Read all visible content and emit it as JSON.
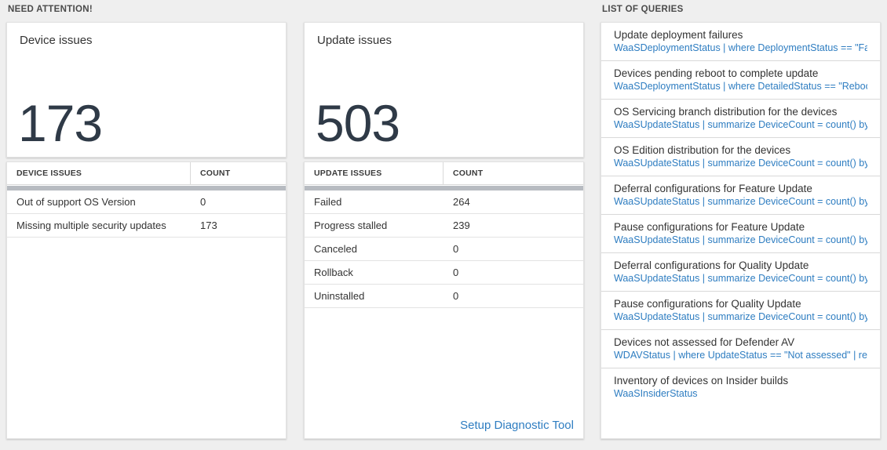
{
  "sections": {
    "need_attention_title": "NEED ATTENTION!",
    "queries_title": "LIST OF QUERIES"
  },
  "device_issues": {
    "title": "Device issues",
    "count": "173",
    "table": {
      "headers": [
        "DEVICE ISSUES",
        "COUNT"
      ],
      "rows": [
        {
          "label": "Out of support OS Version",
          "count": "0"
        },
        {
          "label": "Missing multiple security updates",
          "count": "173"
        }
      ]
    }
  },
  "update_issues": {
    "title": "Update issues",
    "count": "503",
    "table": {
      "headers": [
        "UPDATE ISSUES",
        "COUNT"
      ],
      "rows": [
        {
          "label": "Failed",
          "count": "264"
        },
        {
          "label": "Progress stalled",
          "count": "239"
        },
        {
          "label": "Canceled",
          "count": "0"
        },
        {
          "label": "Rollback",
          "count": "0"
        },
        {
          "label": "Uninstalled",
          "count": "0"
        }
      ]
    },
    "link_label": "Setup Diagnostic Tool"
  },
  "query_list": [
    {
      "title": "Update deployment failures",
      "query": "WaaSDeploymentStatus | where DeploymentStatus == \"Failed\" |..."
    },
    {
      "title": "Devices pending reboot to complete update",
      "query": "WaaSDeploymentStatus | where DetailedStatus == \"Reboot pend..."
    },
    {
      "title": "OS Servicing branch distribution for the devices",
      "query": "WaaSUpdateStatus | summarize DeviceCount = count() by OSSer..."
    },
    {
      "title": "OS Edition distribution for the devices",
      "query": "WaaSUpdateStatus | summarize DeviceCount = count() by OSEdit..."
    },
    {
      "title": "Deferral configurations for Feature Update",
      "query": "WaaSUpdateStatus | summarize DeviceCount = count() by Featur..."
    },
    {
      "title": "Pause configurations for Feature Update",
      "query": "WaaSUpdateStatus | summarize DeviceCount = count() by Featur..."
    },
    {
      "title": "Deferral configurations for Quality Update",
      "query": "WaaSUpdateStatus | summarize DeviceCount = count() by Qualit..."
    },
    {
      "title": "Pause configurations for Quality Update",
      "query": "WaaSUpdateStatus | summarize DeviceCount = count() by Qualit..."
    },
    {
      "title": "Devices not assessed for Defender AV",
      "query": "WDAVStatus | where UpdateStatus == \"Not assessed\" | render ta..."
    },
    {
      "title": "Inventory of devices on Insider builds",
      "query": "WaaSInsiderStatus"
    }
  ],
  "colors": {
    "accent_blue": "#2e7dc1",
    "number_dark": "#2f3a47",
    "scrollbar_gray": "#b7bbc1"
  }
}
